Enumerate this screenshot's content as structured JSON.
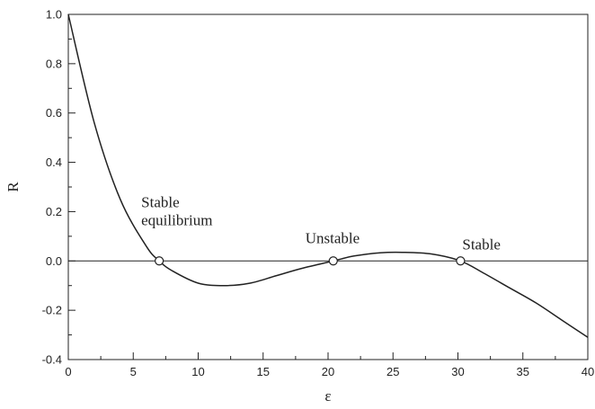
{
  "chart_data": {
    "type": "line",
    "title": "",
    "xlabel": "ε",
    "ylabel": "R",
    "xlim": [
      0,
      40
    ],
    "ylim": [
      -0.4,
      1.0
    ],
    "xticks": [
      0,
      5,
      10,
      15,
      20,
      25,
      30,
      35,
      40
    ],
    "yticks": [
      -0.4,
      -0.2,
      0.0,
      0.2,
      0.4,
      0.6,
      0.8,
      1.0
    ],
    "ytick_labels": [
      "-0.4",
      "-0.2",
      "0.0",
      "0.2",
      "0.4",
      "0.6",
      "0.8",
      "1.0"
    ],
    "grid": false,
    "reference_line_y": 0.0,
    "series": [
      {
        "x": [
          0,
          2,
          4,
          6,
          7,
          8,
          10,
          12,
          14,
          16,
          18,
          20.4,
          22,
          24,
          25.7,
          28,
          30.2,
          32,
          34,
          36,
          38,
          40
        ],
        "y": [
          1.0,
          0.56,
          0.25,
          0.06,
          0.0,
          -0.04,
          -0.09,
          -0.1,
          -0.09,
          -0.06,
          -0.03,
          0.0,
          0.02,
          0.033,
          0.035,
          0.028,
          0.0,
          -0.05,
          -0.11,
          -0.17,
          -0.24,
          -0.31
        ]
      }
    ],
    "markers": [
      {
        "x": 7.0,
        "y": 0.0,
        "label": "Stable\nequilibrium"
      },
      {
        "x": 20.4,
        "y": 0.0,
        "label": "Unstable"
      },
      {
        "x": 30.2,
        "y": 0.0,
        "label": "Stable"
      }
    ]
  }
}
